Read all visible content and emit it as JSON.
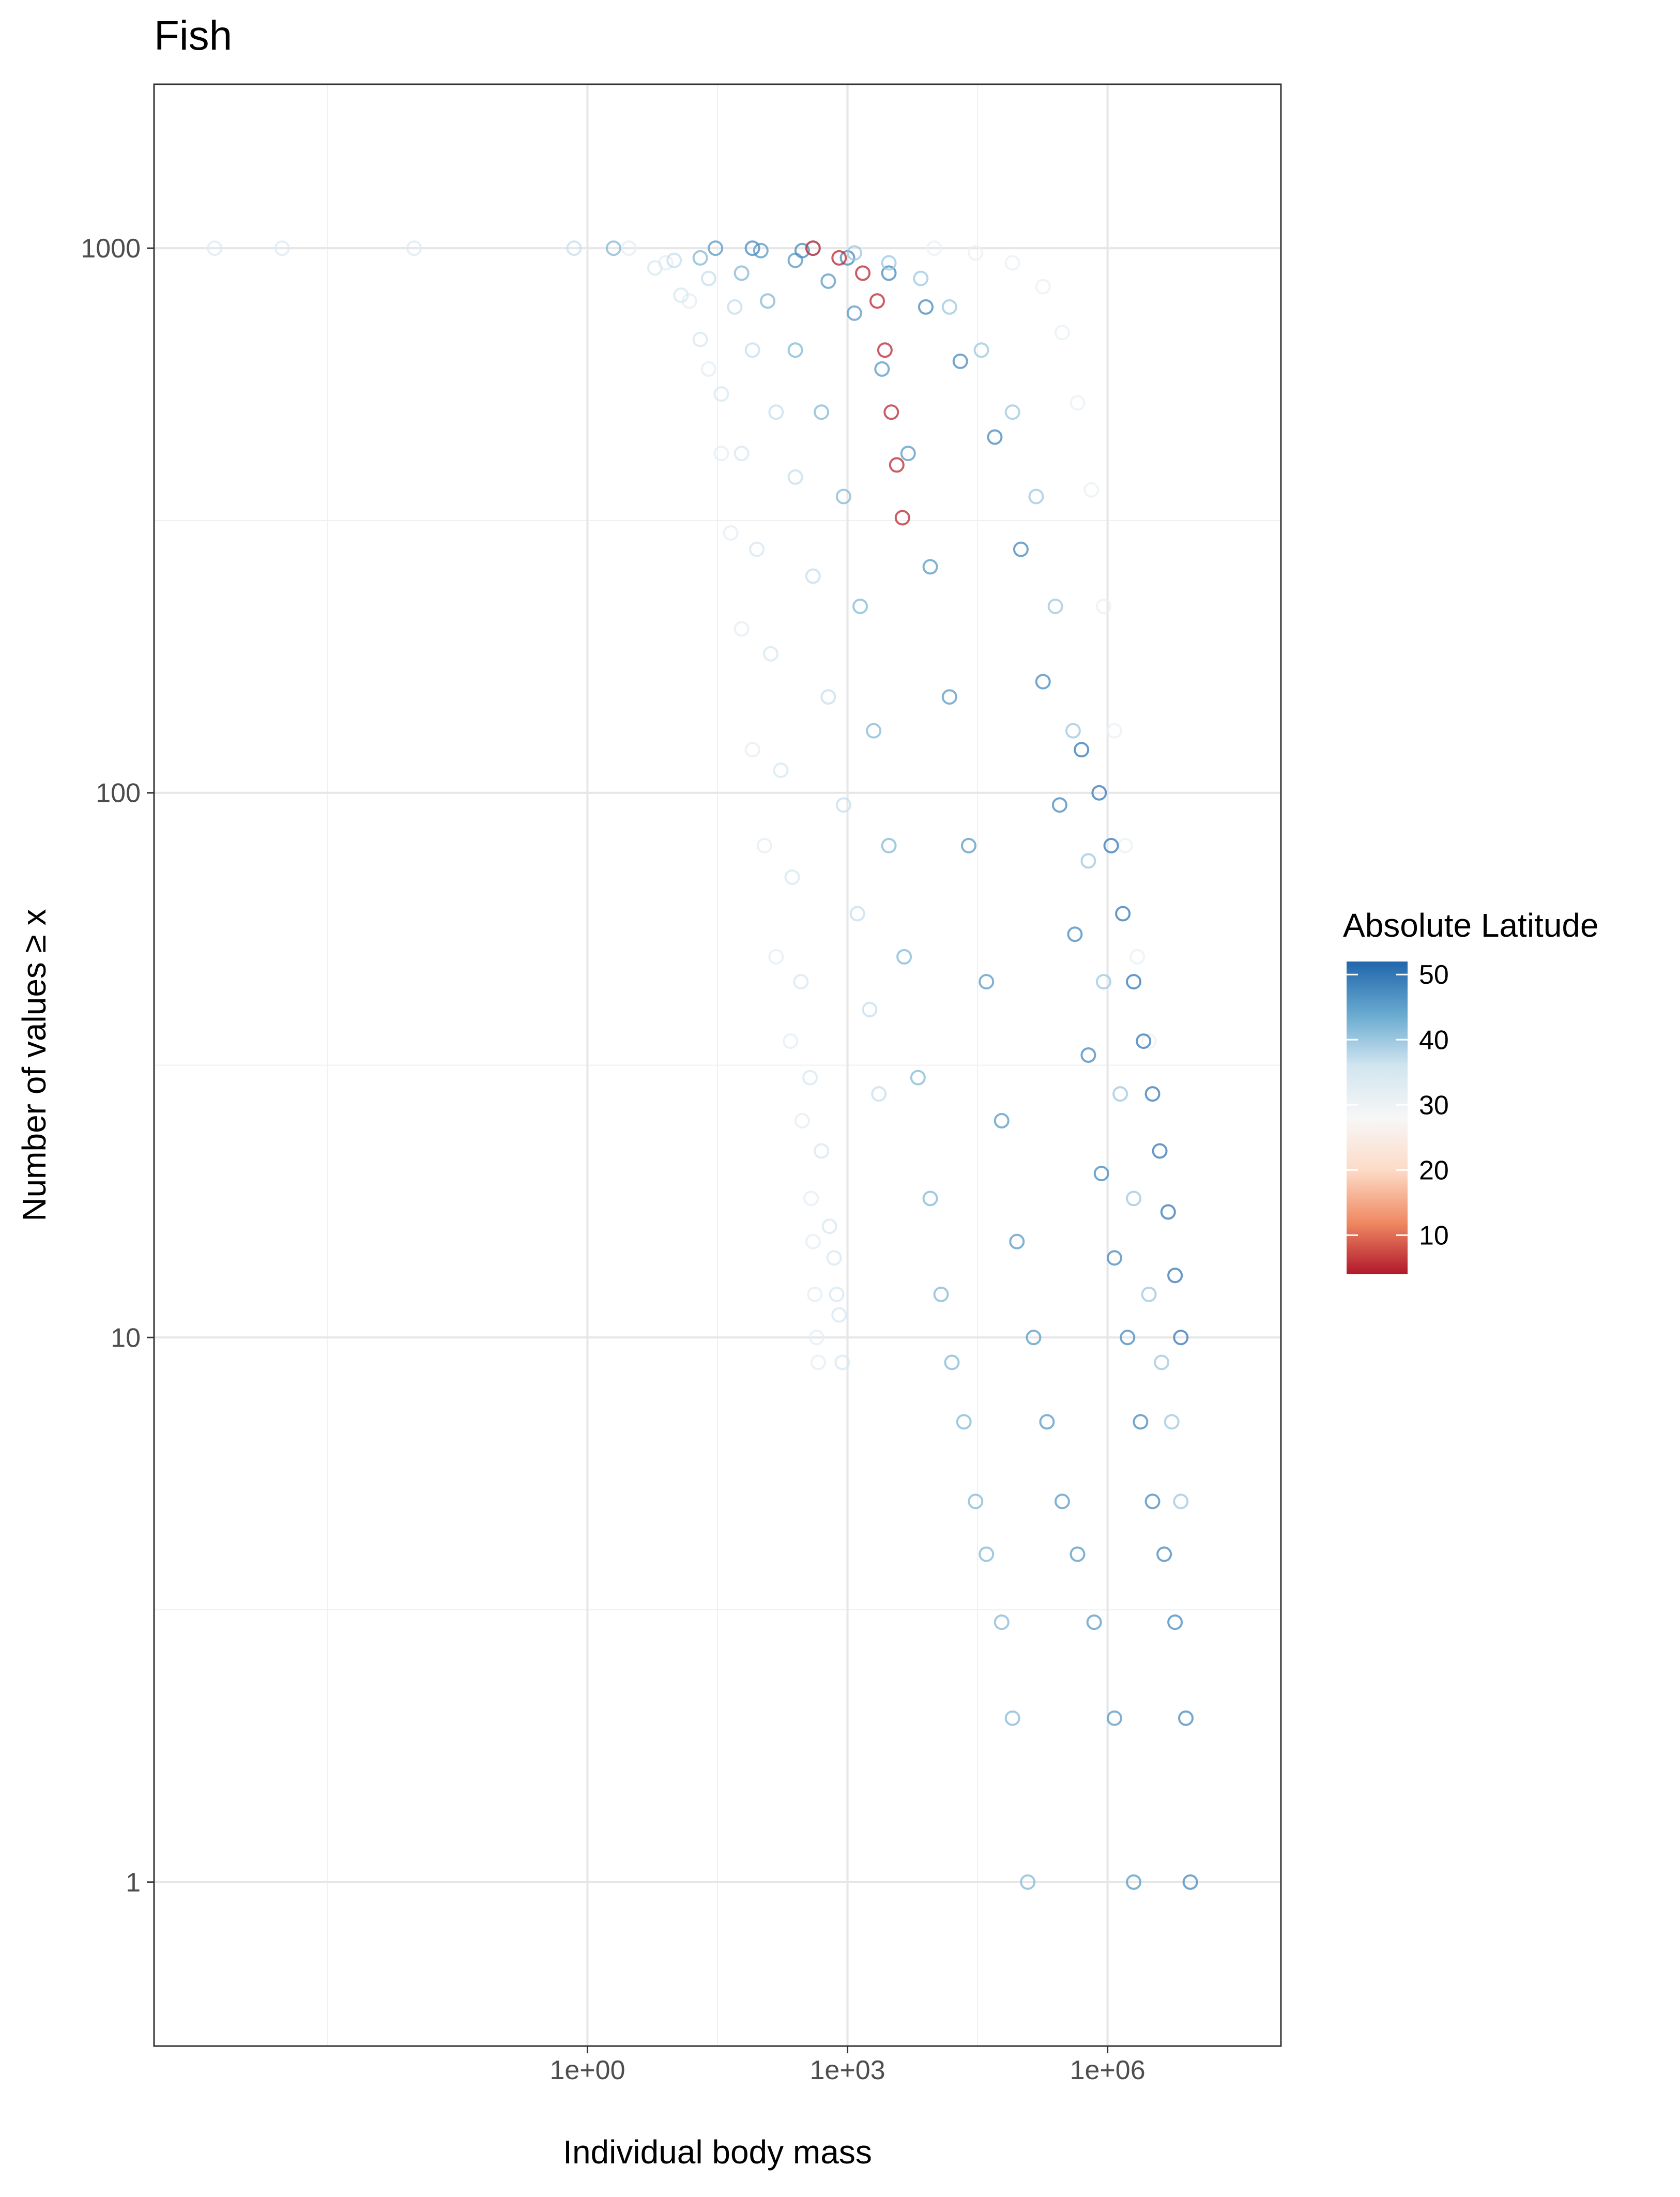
{
  "chart_data": {
    "type": "scatter",
    "title": "Fish",
    "xlabel": "Individual body mass",
    "ylabel": "Number of values ≥ x",
    "x_scale": "log10",
    "y_scale": "log10",
    "xlim": [
      1e-05,
      100000000.0
    ],
    "ylim": [
      0.5,
      2000
    ],
    "x_ticks": [
      {
        "value": 1,
        "label": "1e+00"
      },
      {
        "value": 1000,
        "label": "1e+03"
      },
      {
        "value": 1000000,
        "label": "1e+06"
      }
    ],
    "x_minor_ticks": [
      0.001,
      31.62,
      31623
    ],
    "y_ticks": [
      {
        "value": 1,
        "label": "1"
      },
      {
        "value": 10,
        "label": "10"
      },
      {
        "value": 100,
        "label": "100"
      },
      {
        "value": 1000,
        "label": "1000"
      }
    ],
    "y_minor_ticks": [
      3.162,
      31.62,
      316.2
    ],
    "grid": true,
    "legend": {
      "title": "Absolute Latitude",
      "position": "right",
      "ticks": [
        {
          "value": 10,
          "label": "10"
        },
        {
          "value": 20,
          "label": "20"
        },
        {
          "value": 30,
          "label": "30"
        },
        {
          "value": 40,
          "label": "40"
        },
        {
          "value": 50,
          "label": "50"
        }
      ],
      "range": [
        4,
        52
      ],
      "colors": [
        "#b2182b",
        "#ef8a62",
        "#fddbc7",
        "#f7f7f7",
        "#d1e5f0",
        "#67a9cf",
        "#2166ac"
      ]
    },
    "series": [
      {
        "latitude": 34,
        "points": [
          [
            5e-05,
            1000
          ],
          [
            0.0003,
            1000
          ],
          [
            0.01,
            1000
          ]
        ]
      },
      {
        "latitude": 32,
        "points": [
          [
            3,
            1000
          ],
          [
            8,
            940
          ],
          [
            15,
            800
          ],
          [
            25,
            600
          ],
          [
            35,
            420
          ],
          [
            45,
            300
          ],
          [
            60,
            200
          ],
          [
            80,
            120
          ],
          [
            110,
            80
          ],
          [
            150,
            50
          ],
          [
            220,
            35
          ],
          [
            300,
            25
          ],
          [
            380,
            18
          ],
          [
            400,
            15
          ],
          [
            420,
            12
          ],
          [
            440,
            10
          ],
          [
            460,
            9
          ]
        ]
      },
      {
        "latitude": 35,
        "points": [
          [
            6,
            920
          ],
          [
            12,
            820
          ],
          [
            20,
            680
          ],
          [
            35,
            540
          ],
          [
            60,
            420
          ],
          [
            90,
            280
          ],
          [
            130,
            180
          ],
          [
            170,
            110
          ],
          [
            230,
            70
          ],
          [
            290,
            45
          ],
          [
            370,
            30
          ],
          [
            500,
            22
          ],
          [
            620,
            16
          ],
          [
            700,
            14
          ],
          [
            750,
            12
          ],
          [
            800,
            11
          ],
          [
            870,
            9
          ]
        ]
      },
      {
        "latitude": 37,
        "points": [
          [
            0.7,
            1000
          ],
          [
            10,
            950
          ],
          [
            25,
            880
          ],
          [
            50,
            780
          ],
          [
            80,
            650
          ],
          [
            150,
            500
          ],
          [
            250,
            380
          ],
          [
            400,
            250
          ],
          [
            600,
            150
          ],
          [
            900,
            95
          ],
          [
            1300,
            60
          ],
          [
            1800,
            40
          ],
          [
            2300,
            28
          ]
        ]
      },
      {
        "latitude": 42,
        "points": [
          [
            2,
            1000
          ],
          [
            20,
            960
          ],
          [
            60,
            900
          ],
          [
            120,
            800
          ],
          [
            250,
            650
          ],
          [
            500,
            500
          ],
          [
            900,
            350
          ],
          [
            1400,
            220
          ],
          [
            2000,
            130
          ],
          [
            3000,
            80
          ],
          [
            4500,
            50
          ],
          [
            6500,
            30
          ],
          [
            9000,
            18
          ],
          [
            12000,
            12
          ],
          [
            16000,
            9
          ],
          [
            22000,
            7
          ],
          [
            30000,
            5
          ],
          [
            40000,
            4
          ],
          [
            60000,
            3
          ],
          [
            80000,
            2
          ],
          [
            120000,
            1
          ]
        ]
      },
      {
        "latitude": 46,
        "points": [
          [
            30,
            1000
          ],
          [
            100,
            990
          ],
          [
            250,
            950
          ],
          [
            600,
            870
          ],
          [
            1200,
            760
          ],
          [
            2500,
            600
          ],
          [
            5000,
            420
          ],
          [
            9000,
            260
          ],
          [
            15000,
            150
          ],
          [
            25000,
            80
          ],
          [
            40000,
            45
          ],
          [
            60000,
            25
          ],
          [
            90000,
            15
          ],
          [
            140000,
            10
          ],
          [
            200000,
            7
          ],
          [
            300000,
            5
          ],
          [
            450000,
            4
          ],
          [
            700000,
            3
          ],
          [
            1200000,
            2
          ],
          [
            2000000,
            1
          ]
        ]
      },
      {
        "latitude": 48,
        "points": [
          [
            80,
            1000
          ],
          [
            300,
            990
          ],
          [
            1000,
            960
          ],
          [
            3000,
            900
          ],
          [
            8000,
            780
          ],
          [
            20000,
            620
          ],
          [
            50000,
            450
          ],
          [
            100000,
            280
          ],
          [
            180000,
            160
          ],
          [
            280000,
            95
          ],
          [
            420000,
            55
          ],
          [
            600000,
            33
          ],
          [
            850000,
            20
          ],
          [
            1200000,
            14
          ],
          [
            1700000,
            10
          ],
          [
            2400000,
            7
          ],
          [
            3300000,
            5
          ],
          [
            4500000,
            4
          ],
          [
            6000000,
            3
          ],
          [
            8000000,
            2
          ],
          [
            9000000,
            1
          ]
        ]
      },
      {
        "latitude": 40,
        "points": [
          [
            400,
            1000
          ],
          [
            1200,
            980
          ],
          [
            3000,
            940
          ],
          [
            7000,
            880
          ],
          [
            15000,
            780
          ],
          [
            35000,
            650
          ],
          [
            80000,
            500
          ],
          [
            150000,
            350
          ],
          [
            250000,
            220
          ],
          [
            400000,
            130
          ],
          [
            600000,
            75
          ],
          [
            900000,
            45
          ],
          [
            1400000,
            28
          ],
          [
            2000000,
            18
          ],
          [
            3000000,
            12
          ],
          [
            4200000,
            9
          ],
          [
            5500000,
            7
          ],
          [
            7000000,
            5
          ]
        ]
      },
      {
        "latitude": 31,
        "points": [
          [
            10000,
            1000
          ],
          [
            30000,
            980
          ],
          [
            80000,
            940
          ],
          [
            180000,
            850
          ],
          [
            300000,
            700
          ],
          [
            450000,
            520
          ],
          [
            650000,
            360
          ],
          [
            900000,
            220
          ],
          [
            1200000,
            130
          ],
          [
            1600000,
            80
          ],
          [
            2200000,
            50
          ],
          [
            3000000,
            35
          ]
        ]
      },
      {
        "latitude": 5,
        "points": [
          [
            400,
            1000
          ],
          [
            800,
            960
          ],
          [
            1500,
            900
          ],
          [
            2200,
            800
          ],
          [
            2700,
            650
          ],
          [
            3200,
            500
          ],
          [
            3700,
            400
          ],
          [
            4300,
            320
          ]
        ]
      },
      {
        "latitude": 50,
        "points": [
          [
            500000,
            120
          ],
          [
            800000,
            100
          ],
          [
            1100000,
            80
          ],
          [
            1500000,
            60
          ],
          [
            2000000,
            45
          ],
          [
            2600000,
            35
          ],
          [
            3300000,
            28
          ],
          [
            4000000,
            22
          ],
          [
            5000000,
            17
          ],
          [
            6000000,
            13
          ],
          [
            7000000,
            10
          ]
        ]
      }
    ]
  }
}
